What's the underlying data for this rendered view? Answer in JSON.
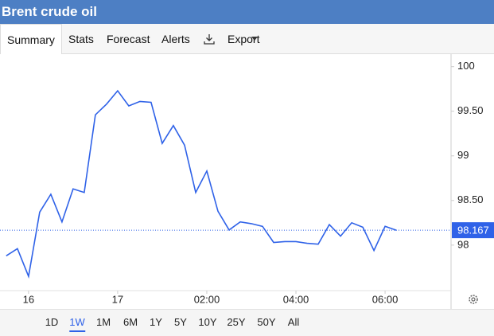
{
  "header": {
    "title": "Brent crude oil"
  },
  "tabs": [
    "Summary",
    "Stats",
    "Forecast",
    "Alerts",
    "Export"
  ],
  "active_tab": 0,
  "ranges": [
    "1D",
    "1W",
    "1M",
    "6M",
    "1Y",
    "5Y",
    "10Y",
    "25Y",
    "50Y",
    "All"
  ],
  "active_range": 1,
  "chart_data": {
    "type": "line",
    "color": "#2f62e8",
    "x": [
      -0.25,
      -0.125,
      0,
      0.125,
      0.25,
      0.375,
      0.5,
      0.625,
      0.75,
      0.875,
      1,
      1.125,
      1.25,
      1.375,
      1.5,
      1.625,
      1.75,
      1.875,
      2,
      2.125,
      2.25,
      2.375,
      2.5,
      2.625,
      2.75,
      2.875,
      3,
      3.125,
      3.25,
      3.375,
      3.5,
      3.625,
      3.75,
      3.875,
      4,
      4.125
    ],
    "values": [
      97.88,
      97.96,
      97.65,
      98.37,
      98.57,
      98.26,
      98.63,
      98.59,
      99.46,
      99.58,
      99.73,
      99.56,
      99.61,
      99.6,
      99.14,
      99.34,
      99.12,
      98.59,
      98.83,
      98.38,
      98.17,
      98.26,
      98.24,
      98.21,
      98.03,
      98.04,
      98.04,
      98.02,
      98.01,
      98.23,
      98.1,
      98.25,
      98.2,
      97.94,
      98.21,
      98.167
    ],
    "xlim": [
      -0.32,
      4.74
    ],
    "ylim": [
      97.49,
      100.14
    ],
    "xticks": [
      {
        "value": 0,
        "label": "16"
      },
      {
        "value": 1,
        "label": "17"
      },
      {
        "value": 2,
        "label": "02:00"
      },
      {
        "value": 3,
        "label": "04:00"
      },
      {
        "value": 4,
        "label": "06:00"
      }
    ],
    "yticks": [
      98,
      {
        "value": 98.5,
        "label": "98.50"
      },
      99,
      {
        "value": 99.5,
        "label": "99.50"
      },
      100
    ],
    "last_value": 98.167
  }
}
